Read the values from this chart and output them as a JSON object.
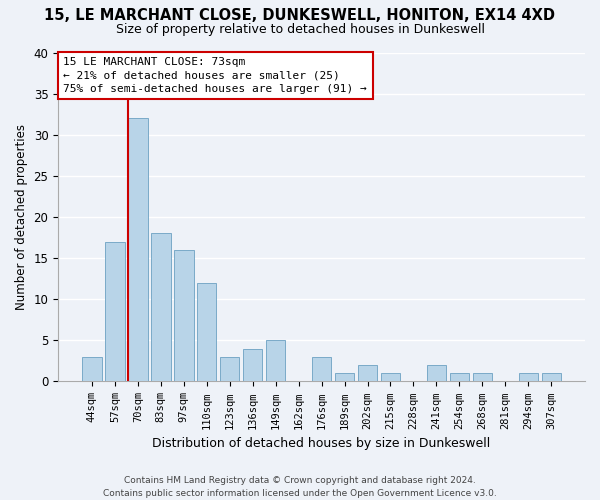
{
  "title": "15, LE MARCHANT CLOSE, DUNKESWELL, HONITON, EX14 4XD",
  "subtitle": "Size of property relative to detached houses in Dunkeswell",
  "xlabel": "Distribution of detached houses by size in Dunkeswell",
  "ylabel": "Number of detached properties",
  "bar_color": "#b8d4e8",
  "bar_edge_color": "#7aaac8",
  "categories": [
    "44sqm",
    "57sqm",
    "70sqm",
    "83sqm",
    "97sqm",
    "110sqm",
    "123sqm",
    "136sqm",
    "149sqm",
    "162sqm",
    "176sqm",
    "189sqm",
    "202sqm",
    "215sqm",
    "228sqm",
    "241sqm",
    "254sqm",
    "268sqm",
    "281sqm",
    "294sqm",
    "307sqm"
  ],
  "values": [
    3,
    17,
    32,
    18,
    16,
    12,
    3,
    4,
    5,
    0,
    3,
    1,
    2,
    1,
    0,
    2,
    1,
    1,
    0,
    1,
    1
  ],
  "ylim": [
    0,
    40
  ],
  "yticks": [
    0,
    5,
    10,
    15,
    20,
    25,
    30,
    35,
    40
  ],
  "vline_index": 2,
  "vline_color": "#cc0000",
  "annotation_text": "15 LE MARCHANT CLOSE: 73sqm\n← 21% of detached houses are smaller (25)\n75% of semi-detached houses are larger (91) →",
  "annotation_box_color": "#ffffff",
  "annotation_box_edge": "#cc0000",
  "background_color": "#eef2f8",
  "grid_color": "#ffffff",
  "footer_line1": "Contains HM Land Registry data © Crown copyright and database right 2024.",
  "footer_line2": "Contains public sector information licensed under the Open Government Licence v3.0."
}
